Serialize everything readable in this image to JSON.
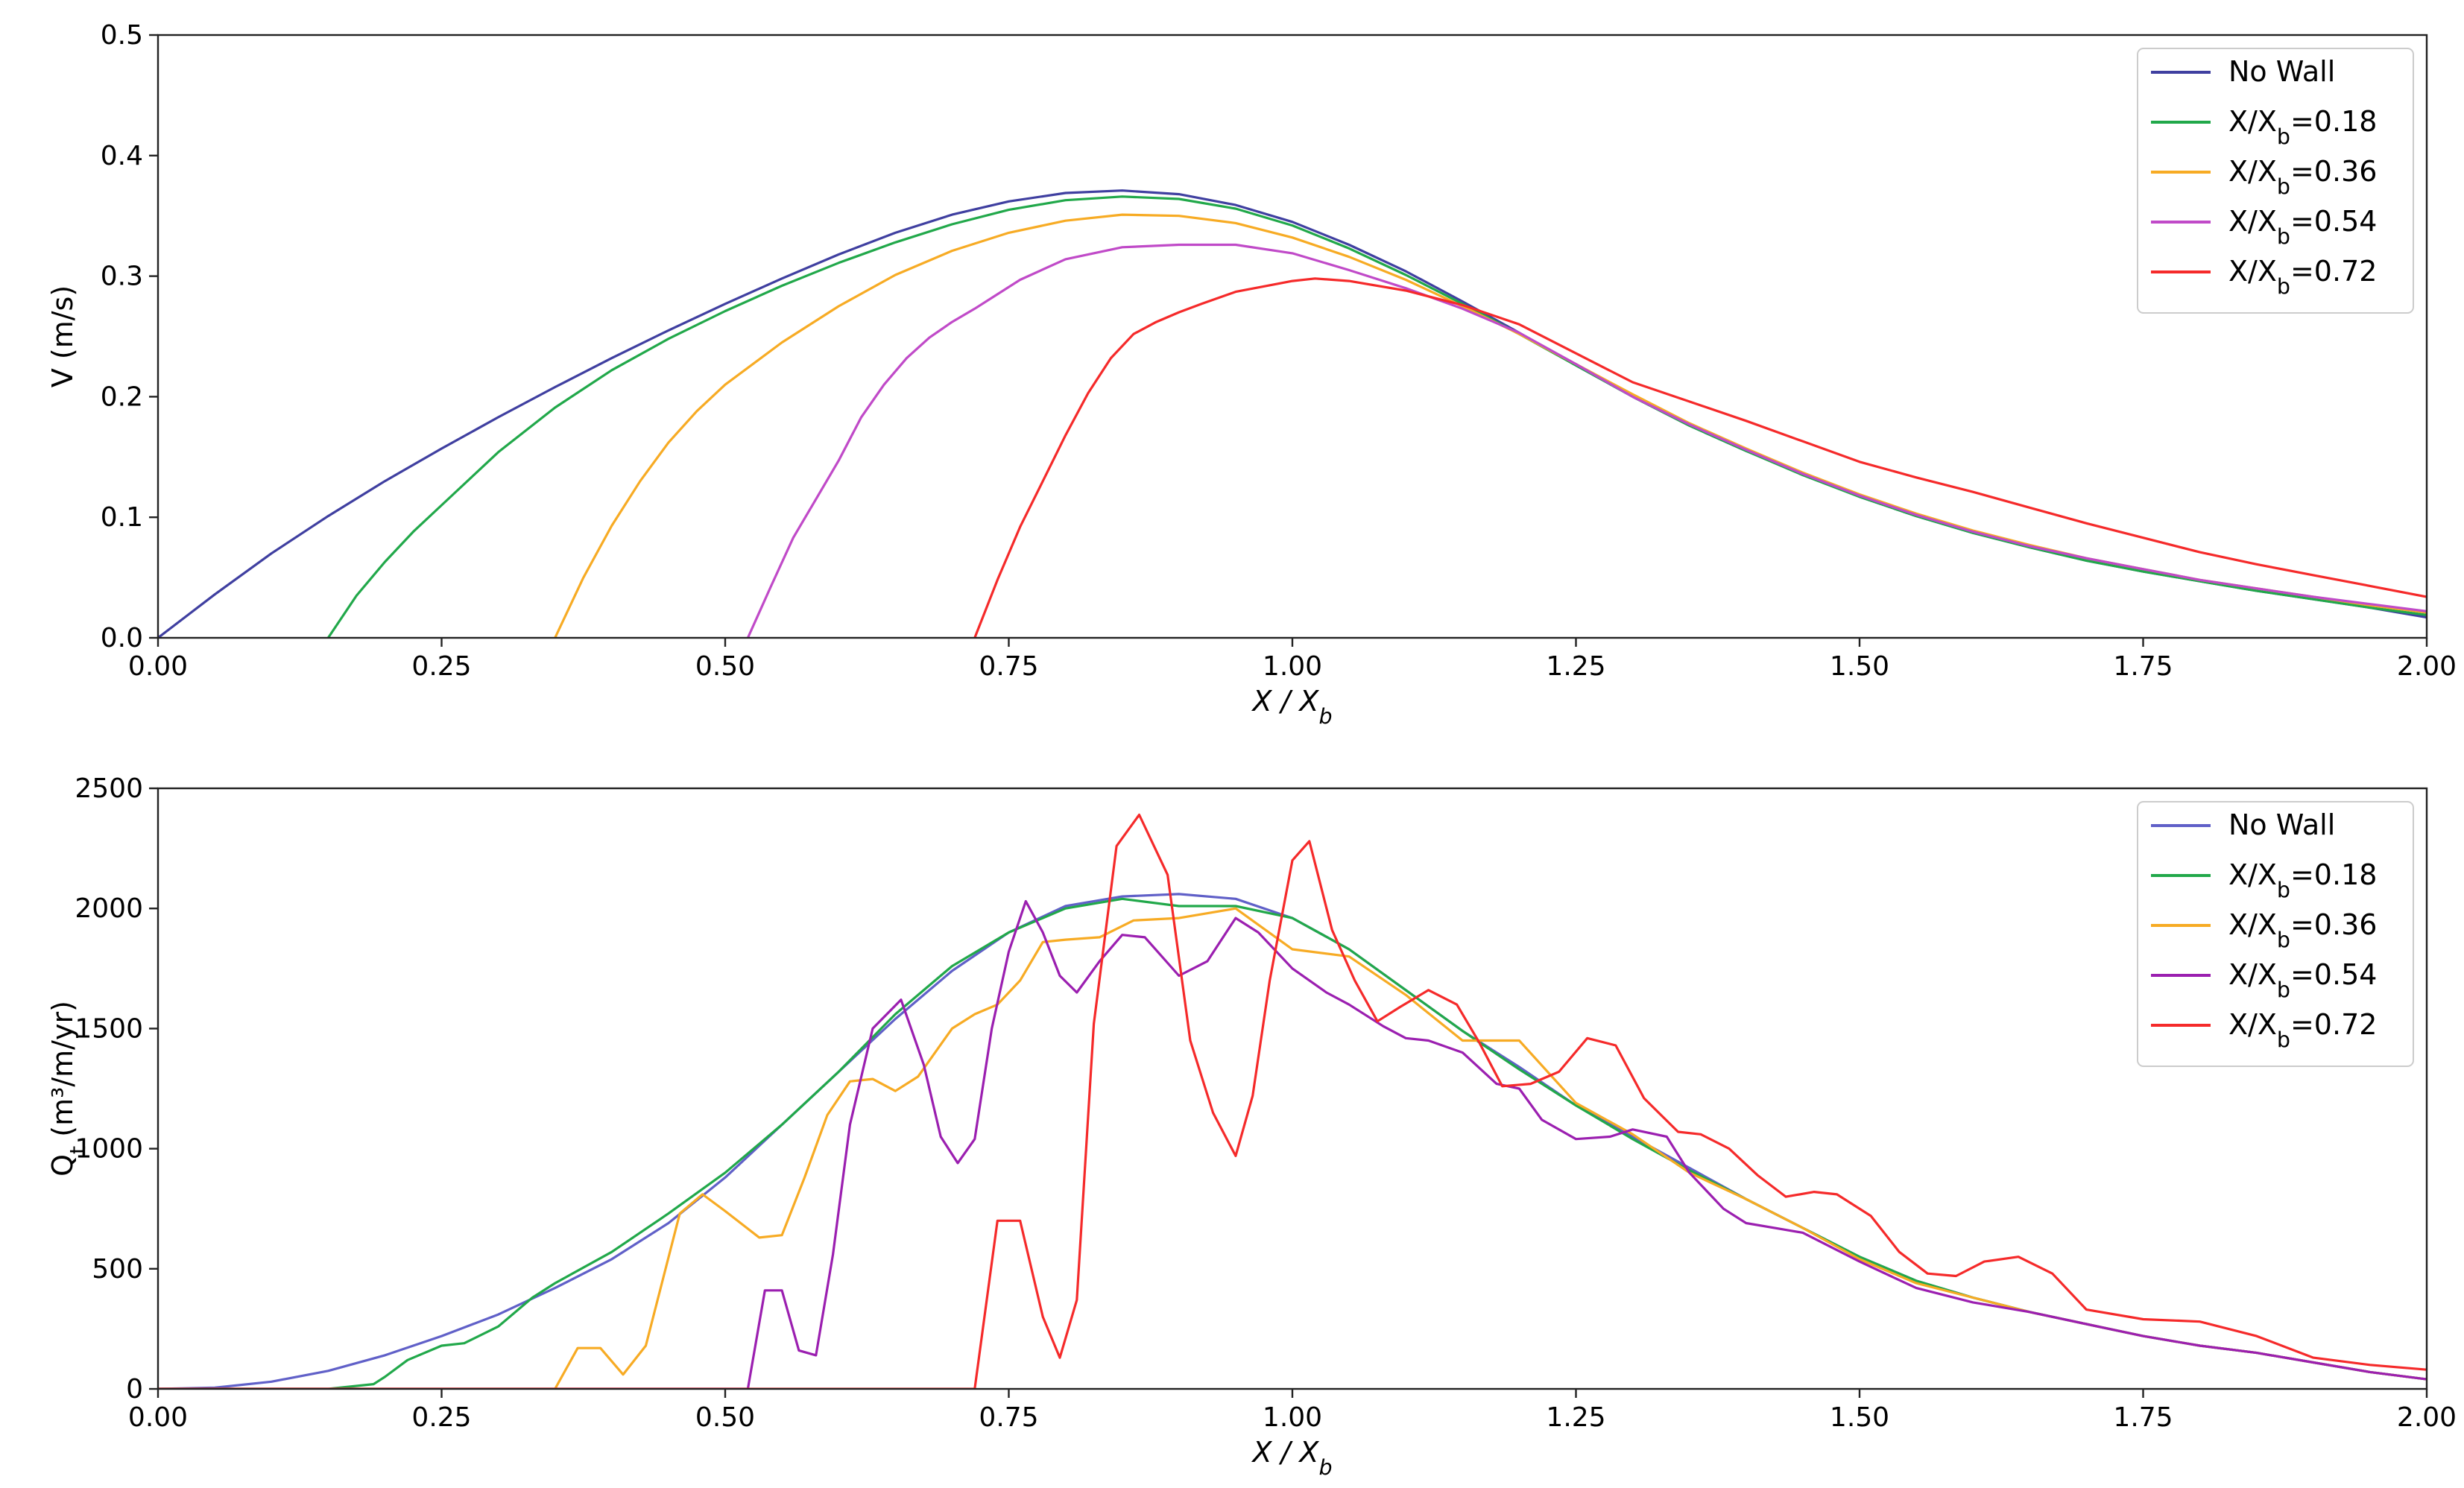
{
  "chart_data": [
    {
      "type": "line",
      "ylabel": "V (m/s)",
      "xlabel": "X / X_b",
      "xlim": [
        0,
        2
      ],
      "ylim": [
        0,
        0.5
      ],
      "xticks": [
        "0.00",
        "0.25",
        "0.50",
        "0.75",
        "1.00",
        "1.25",
        "1.50",
        "1.75",
        "2.00"
      ],
      "yticks": [
        "0.0",
        "0.1",
        "0.2",
        "0.3",
        "0.4",
        "0.5"
      ],
      "grid": false,
      "legend_position": "top-right",
      "series": [
        {
          "name": "No Wall",
          "color": "#3f3fa0",
          "x": [
            0,
            0.05,
            0.1,
            0.15,
            0.2,
            0.25,
            0.3,
            0.35,
            0.4,
            0.45,
            0.5,
            0.55,
            0.6,
            0.65,
            0.7,
            0.75,
            0.8,
            0.85,
            0.9,
            0.95,
            1.0,
            1.05,
            1.1,
            1.15,
            1.2,
            1.25,
            1.3,
            1.35,
            1.4,
            1.45,
            1.5,
            1.55,
            1.6,
            1.65,
            1.7,
            1.75,
            1.8,
            1.85,
            1.9,
            1.95,
            2.0
          ],
          "y": [
            0,
            0.036,
            0.07,
            0.101,
            0.13,
            0.157,
            0.183,
            0.208,
            0.232,
            0.255,
            0.277,
            0.298,
            0.318,
            0.336,
            0.351,
            0.362,
            0.369,
            0.371,
            0.368,
            0.359,
            0.345,
            0.326,
            0.304,
            0.279,
            0.253,
            0.226,
            0.2,
            0.176,
            0.155,
            0.136,
            0.117,
            0.101,
            0.087,
            0.075,
            0.064,
            0.055,
            0.047,
            0.039,
            0.032,
            0.025,
            0.017
          ]
        },
        {
          "name": "X/X_b=0.18",
          "color": "#21a84a",
          "x": [
            0.15,
            0.175,
            0.2,
            0.225,
            0.25,
            0.3,
            0.35,
            0.4,
            0.45,
            0.5,
            0.55,
            0.6,
            0.65,
            0.7,
            0.75,
            0.8,
            0.85,
            0.9,
            0.95,
            1.0,
            1.05,
            1.1,
            1.15,
            1.2,
            1.25,
            1.3,
            1.35,
            1.4,
            1.45,
            1.5,
            1.55,
            1.6,
            1.65,
            1.7,
            1.75,
            1.8,
            1.85,
            1.9,
            1.95,
            2.0
          ],
          "y": [
            0,
            0.035,
            0.063,
            0.088,
            0.11,
            0.154,
            0.191,
            0.222,
            0.248,
            0.271,
            0.292,
            0.311,
            0.328,
            0.343,
            0.355,
            0.363,
            0.366,
            0.364,
            0.356,
            0.342,
            0.323,
            0.301,
            0.277,
            0.252,
            0.226,
            0.2,
            0.176,
            0.155,
            0.135,
            0.117,
            0.101,
            0.087,
            0.075,
            0.064,
            0.055,
            0.047,
            0.039,
            0.032,
            0.025,
            0.019
          ]
        },
        {
          "name": "X/X_b=0.36",
          "color": "#f7ab24",
          "x": [
            0.35,
            0.375,
            0.4,
            0.425,
            0.45,
            0.475,
            0.5,
            0.55,
            0.6,
            0.65,
            0.7,
            0.75,
            0.8,
            0.85,
            0.9,
            0.95,
            1.0,
            1.05,
            1.1,
            1.15,
            1.2,
            1.25,
            1.3,
            1.35,
            1.4,
            1.45,
            1.5,
            1.55,
            1.6,
            1.65,
            1.7,
            1.75,
            1.8,
            1.85,
            1.9,
            1.95,
            2.0
          ],
          "y": [
            0,
            0.05,
            0.093,
            0.13,
            0.162,
            0.188,
            0.21,
            0.245,
            0.275,
            0.301,
            0.321,
            0.336,
            0.346,
            0.351,
            0.35,
            0.344,
            0.332,
            0.316,
            0.297,
            0.275,
            0.252,
            0.227,
            0.202,
            0.178,
            0.157,
            0.137,
            0.119,
            0.103,
            0.089,
            0.077,
            0.066,
            0.057,
            0.048,
            0.041,
            0.034,
            0.027,
            0.021
          ]
        },
        {
          "name": "X/X_b=0.54",
          "color": "#c04ac8",
          "x": [
            0.52,
            0.54,
            0.56,
            0.58,
            0.6,
            0.62,
            0.64,
            0.66,
            0.68,
            0.7,
            0.72,
            0.74,
            0.76,
            0.8,
            0.85,
            0.9,
            0.95,
            1.0,
            1.05,
            1.1,
            1.15,
            1.2,
            1.25,
            1.3,
            1.35,
            1.4,
            1.45,
            1.5,
            1.55,
            1.6,
            1.65,
            1.7,
            1.75,
            1.8,
            1.85,
            1.9,
            1.95,
            2.0
          ],
          "y": [
            0,
            0.042,
            0.083,
            0.115,
            0.147,
            0.183,
            0.21,
            0.232,
            0.249,
            0.262,
            0.273,
            0.285,
            0.297,
            0.314,
            0.324,
            0.326,
            0.326,
            0.319,
            0.305,
            0.29,
            0.273,
            0.253,
            0.227,
            0.2,
            0.177,
            0.156,
            0.136,
            0.118,
            0.102,
            0.088,
            0.076,
            0.066,
            0.057,
            0.048,
            0.041,
            0.034,
            0.028,
            0.022
          ]
        },
        {
          "name": "X/X_b=0.72",
          "color": "#f52a2a",
          "x": [
            0.72,
            0.74,
            0.76,
            0.78,
            0.8,
            0.82,
            0.84,
            0.86,
            0.88,
            0.9,
            0.92,
            0.95,
            1.0,
            1.02,
            1.05,
            1.1,
            1.15,
            1.2,
            1.25,
            1.3,
            1.35,
            1.4,
            1.45,
            1.5,
            1.55,
            1.6,
            1.65,
            1.7,
            1.75,
            1.8,
            1.85,
            1.9,
            1.95,
            2.0
          ],
          "y": [
            0,
            0.048,
            0.092,
            0.13,
            0.168,
            0.203,
            0.232,
            0.252,
            0.262,
            0.27,
            0.277,
            0.287,
            0.296,
            0.298,
            0.296,
            0.288,
            0.276,
            0.26,
            0.236,
            0.212,
            0.196,
            0.18,
            0.163,
            0.146,
            0.133,
            0.121,
            0.108,
            0.095,
            0.083,
            0.071,
            0.061,
            0.052,
            0.043,
            0.034
          ]
        }
      ]
    },
    {
      "type": "line",
      "ylabel": "Q_t (m³/m/yr)",
      "xlabel": "X / X_b",
      "xlim": [
        0,
        2
      ],
      "ylim": [
        0,
        2500
      ],
      "xticks": [
        "0.00",
        "0.25",
        "0.50",
        "0.75",
        "1.00",
        "1.25",
        "1.50",
        "1.75",
        "2.00"
      ],
      "yticks": [
        "0",
        "500",
        "1000",
        "1500",
        "2000",
        "2500"
      ],
      "grid": false,
      "legend_position": "top-right",
      "series": [
        {
          "name": "No Wall",
          "color": "#6060c8",
          "x": [
            0,
            0.05,
            0.1,
            0.15,
            0.2,
            0.25,
            0.3,
            0.35,
            0.4,
            0.45,
            0.5,
            0.55,
            0.6,
            0.65,
            0.7,
            0.75,
            0.8,
            0.85,
            0.9,
            0.95,
            1.0,
            1.05,
            1.1,
            1.15,
            1.2,
            1.25,
            1.3,
            1.35,
            1.4,
            1.45,
            1.5,
            1.55,
            1.6,
            1.65,
            1.7,
            1.75,
            1.8,
            1.85,
            1.9,
            1.95,
            2.0
          ],
          "y": [
            0,
            5,
            30,
            75,
            140,
            220,
            310,
            420,
            540,
            690,
            880,
            1100,
            1320,
            1540,
            1740,
            1900,
            2010,
            2050,
            2060,
            2040,
            1960,
            1830,
            1660,
            1490,
            1340,
            1180,
            1050,
            920,
            790,
            670,
            550,
            450,
            380,
            320,
            270,
            220,
            180,
            150,
            110,
            70,
            40
          ]
        },
        {
          "name": "X/X_b=0.18",
          "color": "#21a84a",
          "x": [
            0,
            0.15,
            0.19,
            0.2,
            0.22,
            0.25,
            0.27,
            0.3,
            0.33,
            0.35,
            0.4,
            0.45,
            0.5,
            0.55,
            0.6,
            0.65,
            0.7,
            0.75,
            0.8,
            0.85,
            0.9,
            0.95,
            1.0,
            1.05,
            1.1,
            1.15,
            1.2,
            1.25,
            1.3,
            1.35,
            1.4,
            1.45,
            1.5,
            1.55,
            1.6,
            1.65,
            1.7,
            1.75,
            1.8,
            1.85,
            1.9,
            1.95,
            2.0
          ],
          "y": [
            0,
            0,
            20,
            50,
            120,
            180,
            190,
            260,
            380,
            440,
            570,
            730,
            900,
            1100,
            1320,
            1560,
            1760,
            1900,
            2000,
            2040,
            2010,
            2010,
            1960,
            1830,
            1660,
            1490,
            1330,
            1180,
            1040,
            910,
            790,
            670,
            550,
            450,
            380,
            320,
            270,
            220,
            180,
            150,
            110,
            70,
            40
          ]
        },
        {
          "name": "X/X_b=0.36",
          "color": "#f7ab24",
          "x": [
            0,
            0.35,
            0.37,
            0.39,
            0.41,
            0.43,
            0.46,
            0.48,
            0.5,
            0.53,
            0.55,
            0.57,
            0.59,
            0.61,
            0.63,
            0.65,
            0.67,
            0.7,
            0.72,
            0.74,
            0.76,
            0.78,
            0.8,
            0.83,
            0.86,
            0.9,
            0.95,
            1.0,
            1.05,
            1.1,
            1.15,
            1.2,
            1.25,
            1.3,
            1.35,
            1.4,
            1.45,
            1.5,
            1.55,
            1.6,
            1.65,
            1.7,
            1.75,
            1.8,
            1.85,
            1.9,
            1.95,
            2.0
          ],
          "y": [
            0,
            0,
            170,
            170,
            60,
            180,
            730,
            810,
            740,
            630,
            640,
            880,
            1140,
            1280,
            1290,
            1240,
            1300,
            1500,
            1560,
            1600,
            1700,
            1860,
            1870,
            1880,
            1950,
            1960,
            2000,
            1830,
            1800,
            1640,
            1450,
            1450,
            1190,
            1060,
            900,
            790,
            670,
            540,
            440,
            380,
            320,
            270,
            220,
            180,
            150,
            110,
            70,
            40
          ]
        },
        {
          "name": "X/X_b=0.54",
          "color": "#9b1fb0",
          "x": [
            0,
            0.52,
            0.535,
            0.55,
            0.565,
            0.58,
            0.595,
            0.61,
            0.63,
            0.655,
            0.675,
            0.69,
            0.705,
            0.72,
            0.735,
            0.75,
            0.765,
            0.78,
            0.795,
            0.81,
            0.83,
            0.85,
            0.87,
            0.9,
            0.925,
            0.95,
            0.97,
            1.0,
            1.03,
            1.05,
            1.08,
            1.1,
            1.12,
            1.15,
            1.18,
            1.2,
            1.22,
            1.25,
            1.28,
            1.3,
            1.33,
            1.35,
            1.38,
            1.4,
            1.45,
            1.5,
            1.55,
            1.6,
            1.65,
            1.7,
            1.75,
            1.8,
            1.85,
            1.9,
            1.95,
            2.0
          ],
          "y": [
            0,
            0,
            410,
            410,
            160,
            140,
            560,
            1100,
            1500,
            1620,
            1350,
            1050,
            940,
            1040,
            1500,
            1820,
            2030,
            1900,
            1720,
            1650,
            1780,
            1890,
            1880,
            1720,
            1780,
            1960,
            1900,
            1750,
            1650,
            1600,
            1510,
            1460,
            1450,
            1400,
            1270,
            1250,
            1120,
            1040,
            1050,
            1080,
            1050,
            900,
            750,
            690,
            650,
            530,
            420,
            360,
            320,
            270,
            220,
            180,
            150,
            110,
            70,
            40
          ]
        },
        {
          "name": "X/X_b=0.72",
          "color": "#f52a2a",
          "x": [
            0,
            0.72,
            0.74,
            0.76,
            0.78,
            0.795,
            0.81,
            0.825,
            0.845,
            0.865,
            0.89,
            0.91,
            0.93,
            0.95,
            0.965,
            0.98,
            1.0,
            1.015,
            1.035,
            1.055,
            1.075,
            1.095,
            1.12,
            1.145,
            1.165,
            1.185,
            1.21,
            1.235,
            1.26,
            1.285,
            1.31,
            1.34,
            1.36,
            1.385,
            1.41,
            1.435,
            1.46,
            1.48,
            1.51,
            1.535,
            1.56,
            1.585,
            1.61,
            1.64,
            1.67,
            1.7,
            1.75,
            1.8,
            1.85,
            1.9,
            1.95,
            2.0
          ],
          "y": [
            0,
            0,
            700,
            700,
            300,
            130,
            370,
            1520,
            2260,
            2390,
            2140,
            1450,
            1150,
            970,
            1220,
            1700,
            2200,
            2280,
            1910,
            1700,
            1530,
            1590,
            1660,
            1600,
            1440,
            1260,
            1270,
            1320,
            1460,
            1430,
            1210,
            1070,
            1060,
            1000,
            890,
            800,
            820,
            810,
            720,
            570,
            480,
            470,
            530,
            550,
            480,
            330,
            290,
            280,
            220,
            130,
            100,
            80
          ]
        }
      ]
    }
  ]
}
